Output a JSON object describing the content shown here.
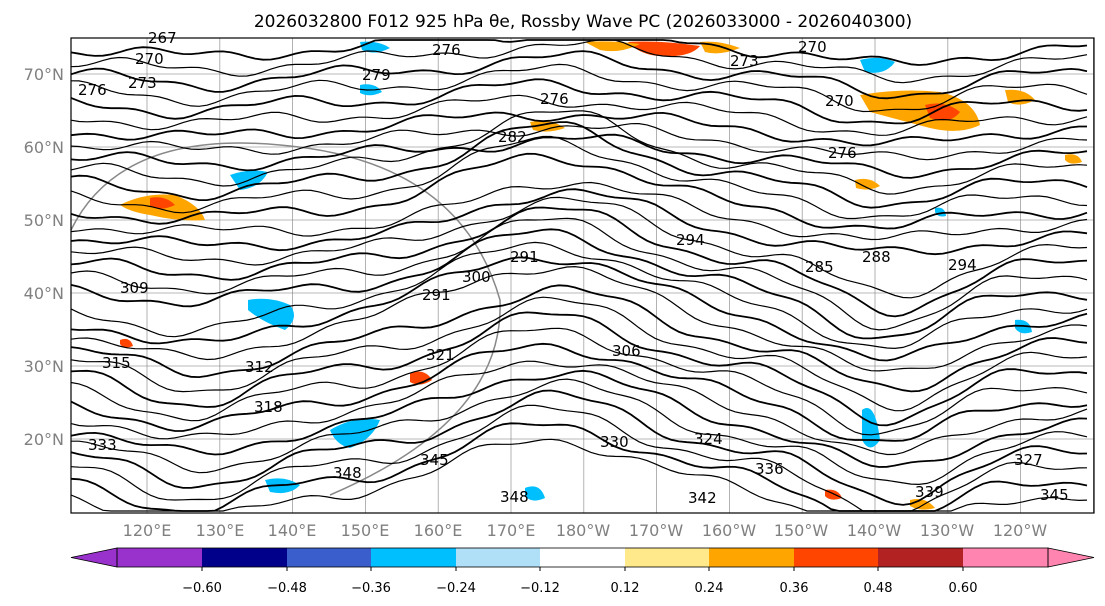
{
  "title": "2026032800 F012 925 hPa θe, Rossby Wave PC (2026033000 - 2026040300)",
  "lat_labels": [
    "70°N",
    "60°N",
    "50°N",
    "40°N",
    "30°N",
    "20°N"
  ],
  "lon_labels": [
    "120°E",
    "130°E",
    "140°E",
    "150°E",
    "160°E",
    "170°E",
    "180°W",
    "170°W",
    "160°W",
    "150°W",
    "140°W",
    "130°W",
    "120°W"
  ],
  "contour_labels": [
    "267",
    "270",
    "273",
    "276",
    "276",
    "279",
    "276",
    "282",
    "273",
    "270",
    "270",
    "276",
    "291",
    "300",
    "291",
    "294",
    "285",
    "288",
    "294",
    "306",
    "309",
    "312",
    "315",
    "318",
    "321",
    "324",
    "330",
    "336",
    "327",
    "342",
    "339",
    "348",
    "345",
    "348",
    "345",
    "333"
  ],
  "colorbar": {
    "tick_labels": [
      "−0.60",
      "−0.48",
      "−0.36",
      "−0.24",
      "−0.12",
      "0.12",
      "0.24",
      "0.36",
      "0.48",
      "0.60"
    ],
    "colors": [
      "#9932cc",
      "#00008b",
      "#3a5fcd",
      "#00bfff",
      "#b0e0f8",
      "#ffffff",
      "#ffe98a",
      "#ffa500",
      "#ff4500",
      "#b22222",
      "#ff85b0"
    ],
    "extend_low_color": "#9932cc",
    "extend_high_color": "#ff85b0"
  },
  "colors": {
    "positive_anomaly": "#ffa500",
    "strong_positive": "#ff4500",
    "negative_anomaly": "#00bfff",
    "light_negative": "#b0e0f8"
  }
}
